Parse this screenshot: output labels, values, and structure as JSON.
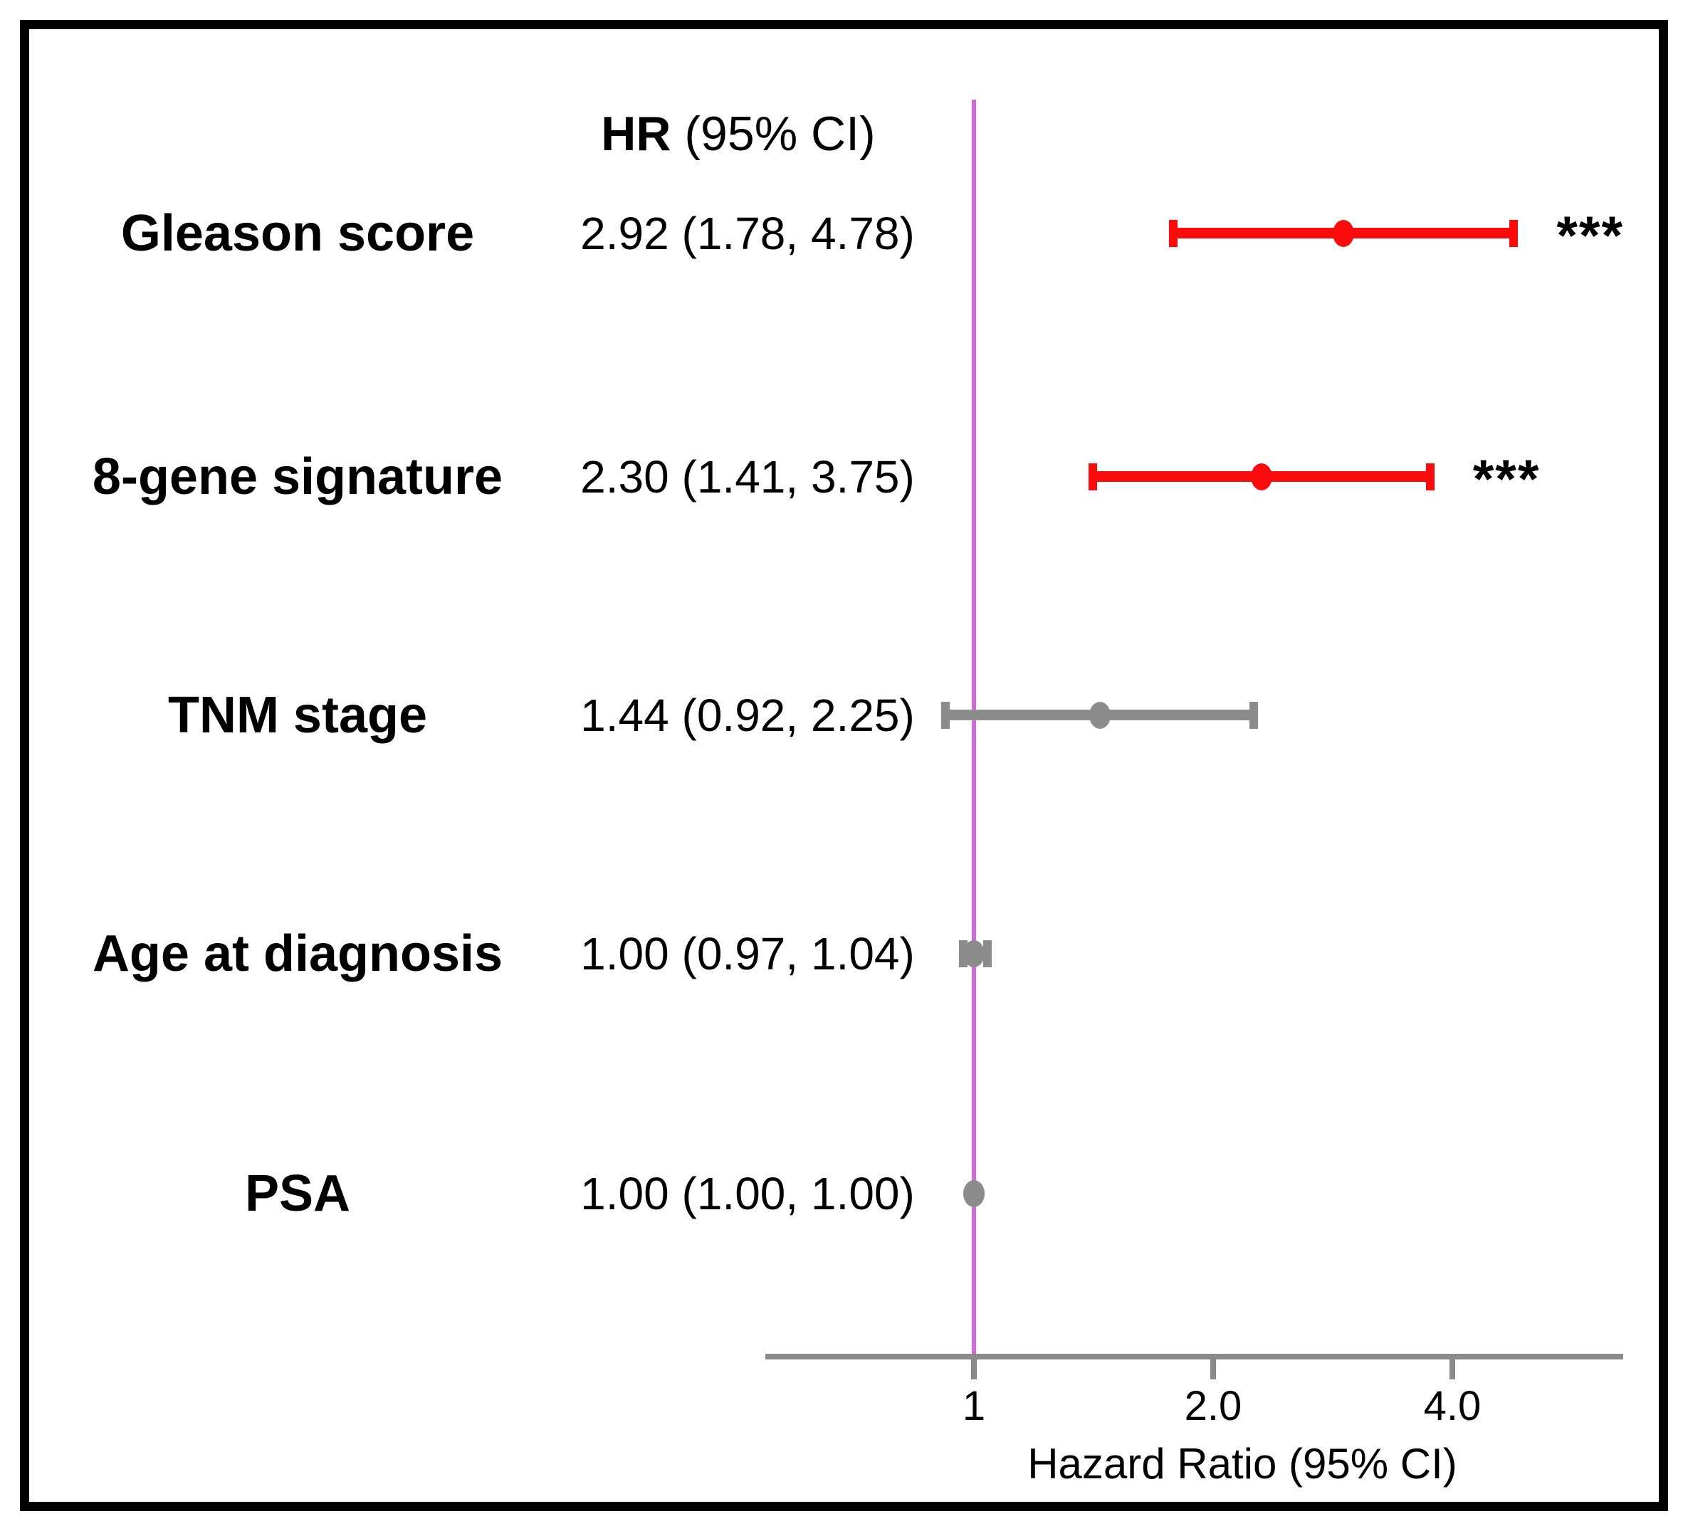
{
  "header": {
    "hr": "HR",
    "ci_suffix": " (95% CI)"
  },
  "colors": {
    "significant": "#fb0b0b",
    "nonsignificant": "#8b8b8b",
    "reference_line": "#d36ad9",
    "axis": "#8a8a8a",
    "frame": "#000000",
    "text": "#000000"
  },
  "chart_data": {
    "type": "forest_plot",
    "title": "",
    "xlabel": "Hazard Ratio (95% CI)",
    "x_scale": "log2",
    "x_range": [
      0.55,
      6.6
    ],
    "reference_line": 1.0,
    "grid": false,
    "ticks": [
      {
        "label": "1",
        "value": 1.0
      },
      {
        "label": "2.0",
        "value": 2.0
      },
      {
        "label": "4.0",
        "value": 4.0
      }
    ],
    "rows": [
      {
        "label": "Gleason score",
        "hr_text": "2.92 (1.78, 4.78)",
        "hr": 2.92,
        "ci_low": 1.78,
        "ci_high": 4.78,
        "significance": "***",
        "color": "significant"
      },
      {
        "label": "8-gene signature",
        "hr_text": "2.30 (1.41, 3.75)",
        "hr": 2.3,
        "ci_low": 1.41,
        "ci_high": 3.75,
        "significance": "***",
        "color": "significant"
      },
      {
        "label": "TNM stage",
        "hr_text": "1.44 (0.92, 2.25)",
        "hr": 1.44,
        "ci_low": 0.92,
        "ci_high": 2.25,
        "significance": "",
        "color": "nonsignificant"
      },
      {
        "label": "Age at diagnosis",
        "hr_text": "1.00 (0.97, 1.04)",
        "hr": 1.0,
        "ci_low": 0.97,
        "ci_high": 1.04,
        "significance": "",
        "color": "nonsignificant"
      },
      {
        "label": "PSA",
        "hr_text": "1.00 (1.00, 1.00)",
        "hr": 1.0,
        "ci_low": 1.0,
        "ci_high": 1.0,
        "significance": "",
        "color": "nonsignificant"
      }
    ]
  }
}
